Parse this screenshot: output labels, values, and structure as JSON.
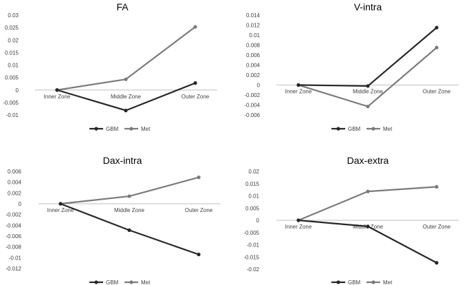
{
  "colors": {
    "GBM": "#262626",
    "Met": "#7a7a7a",
    "zero_axis": "#bfbfbf",
    "text": "#404040",
    "title": "#222222"
  },
  "chart_data": [
    {
      "type": "line",
      "title": "FA",
      "categories": [
        "Inner Zone",
        "Middle Zone",
        "Outer Zone"
      ],
      "ylim": [
        -0.01,
        0.03
      ],
      "yticks": [
        "0.03",
        "0.025",
        "0.02",
        "0.015",
        "0.01",
        "0.005",
        "0",
        "-0.005",
        "-0.01"
      ],
      "ytick_values": [
        0.03,
        0.025,
        0.02,
        0.015,
        0.01,
        0.005,
        0,
        -0.005,
        -0.01
      ],
      "series": [
        {
          "name": "GBM",
          "values": [
            0,
            -0.0082,
            0.0028
          ]
        },
        {
          "name": "Met",
          "values": [
            0,
            0.0043,
            0.0253
          ]
        }
      ],
      "legend": "bottom"
    },
    {
      "type": "line",
      "title": "V-intra",
      "categories": [
        "Inner Zone",
        "Middle Zone",
        "Outer Zone"
      ],
      "ylim": [
        -0.006,
        0.014
      ],
      "yticks": [
        "0.014",
        "0.012",
        "0.01",
        "0.008",
        "0.006",
        "0.004",
        "0.002",
        "0",
        "-0.002",
        "-0.004",
        "-0.006"
      ],
      "ytick_values": [
        0.014,
        0.012,
        0.01,
        0.008,
        0.006,
        0.004,
        0.002,
        0,
        -0.002,
        -0.004,
        -0.006
      ],
      "series": [
        {
          "name": "GBM",
          "values": [
            0,
            -0.0002,
            0.0115
          ]
        },
        {
          "name": "Met",
          "values": [
            0,
            -0.0043,
            0.0075
          ]
        }
      ],
      "legend": "bottom"
    },
    {
      "type": "line",
      "title": "Dax-intra",
      "categories": [
        "Inner Zone",
        "Middle Zone",
        "Outer Zone"
      ],
      "ylim": [
        -0.012,
        0.006
      ],
      "yticks": [
        "0.006",
        "0.004",
        "0.002",
        "0",
        "-0.002",
        "-0.004",
        "-0.006",
        "-0.008",
        "-0.01",
        "-0.012"
      ],
      "ytick_values": [
        0.006,
        0.004,
        0.002,
        0,
        -0.002,
        -0.004,
        -0.006,
        -0.008,
        -0.01,
        -0.012
      ],
      "series": [
        {
          "name": "GBM",
          "values": [
            0,
            -0.0049,
            -0.0094
          ]
        },
        {
          "name": "Met",
          "values": [
            0,
            0.0014,
            0.0049
          ]
        }
      ],
      "legend": "bottom"
    },
    {
      "type": "line",
      "title": "Dax-extra",
      "categories": [
        "Inner Zone",
        "Middle Zone",
        "Outer Zone"
      ],
      "ylim": [
        -0.02,
        0.02
      ],
      "yticks": [
        "0.02",
        "0.015",
        "0.01",
        "0.005",
        "0",
        "-0.005",
        "-0.01",
        "-0.015",
        "-0.02"
      ],
      "ytick_values": [
        0.02,
        0.015,
        0.01,
        0.005,
        0,
        -0.005,
        -0.01,
        -0.015,
        -0.02
      ],
      "series": [
        {
          "name": "GBM",
          "values": [
            0,
            -0.0025,
            -0.0174
          ]
        },
        {
          "name": "Met",
          "values": [
            0,
            0.0118,
            0.0137
          ]
        }
      ],
      "legend": "bottom"
    }
  ]
}
